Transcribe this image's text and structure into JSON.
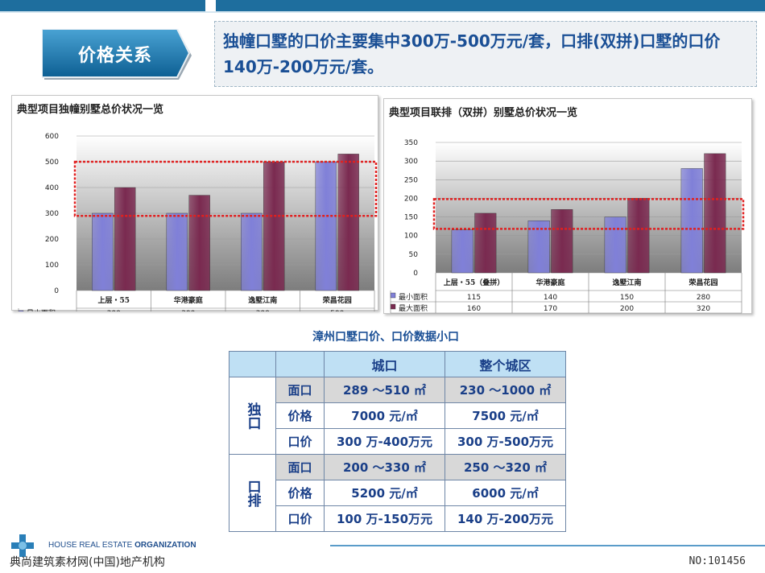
{
  "page": {
    "tab_title": "价格关系",
    "summary_text": "独幢口墅的口价主要集中300万-500万元/套，口排(双拼)口墅的口价140万-200万元/套。"
  },
  "chart_data": [
    {
      "type": "bar",
      "title": "典型项目独幢别墅总价状况一览",
      "categories": [
        "上层・55",
        "华港豪庭",
        "逸墅江南",
        "荣昌花园"
      ],
      "series": [
        {
          "name": "最小面积",
          "values": [
            300,
            300,
            300,
            500
          ],
          "color": "#8080d8"
        },
        {
          "name": "最大面积",
          "values": [
            400,
            370,
            500,
            530
          ],
          "color": "#7a2a50"
        }
      ],
      "yticks": [
        "0",
        "100",
        "200",
        "300",
        "400",
        "500",
        "600"
      ],
      "ylim": [
        0,
        600
      ],
      "highlight_range": [
        290,
        500
      ],
      "legend": "table-below"
    },
    {
      "type": "bar",
      "title": "典型项目联排（双拼）别墅总价状况一览",
      "categories": [
        "上层・55（叠拼）",
        "华港豪庭",
        "逸墅江南",
        "荣昌花园"
      ],
      "series": [
        {
          "name": "最小面积",
          "values": [
            115,
            140,
            150,
            280
          ],
          "color": "#8080d8"
        },
        {
          "name": "最大面积",
          "values": [
            160,
            170,
            200,
            320
          ],
          "color": "#7a2a50"
        }
      ],
      "yticks": [
        "0",
        "50",
        "100",
        "150",
        "200",
        "250",
        "300",
        "350"
      ],
      "ylim": [
        0,
        350
      ],
      "highlight_range": [
        118,
        198
      ],
      "legend": "table-below"
    }
  ],
  "table": {
    "title": "漳州口墅口价、口价数据小口",
    "headers": [
      "城口",
      "整个城区"
    ],
    "groups": [
      {
        "name": "独口",
        "rows": [
          {
            "label": "面口",
            "c1": "289 ～510 ㎡",
            "c2": "230 ～1000 ㎡"
          },
          {
            "label": "价格",
            "c1": "7000 元/㎡",
            "c2": "7500 元/㎡"
          },
          {
            "label": "口价",
            "c1": "300 万-400万元",
            "c2": "300 万-500万元"
          }
        ]
      },
      {
        "name": "口排",
        "rows": [
          {
            "label": "面口",
            "c1": "200 ～330 ㎡",
            "c2": "250 ～320 ㎡"
          },
          {
            "label": "价格",
            "c1": "5200 元/㎡",
            "c2": "6000 元/㎡"
          },
          {
            "label": "口价",
            "c1": "100 万-150万元",
            "c2": "140 万-200万元"
          }
        ]
      }
    ]
  },
  "footer": {
    "brand_en_1": "HOUSE REAL ESTATE",
    "brand_en_2": "ORGANIZATION",
    "brand_cn": "典尚建筑素材网(中国)地产机构",
    "page_no": "NO:101456"
  },
  "colors": {
    "accent": "#1e6e9e",
    "text_blue": "#1a4f95",
    "table_header": "#bfe0f4",
    "highlight": "#e02020"
  }
}
